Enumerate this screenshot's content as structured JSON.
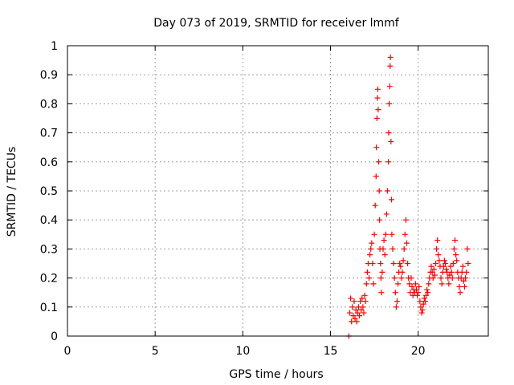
{
  "chart_data": {
    "type": "scatter",
    "title": "Day 073 of 2019, SRMTID for receiver lmmf",
    "xlabel": "GPS time / hours",
    "ylabel": "SRMTID / TECUs",
    "xlim": [
      0,
      24
    ],
    "ylim": [
      0,
      1
    ],
    "x_ticks": [
      0,
      5,
      10,
      15,
      20
    ],
    "y_ticks": [
      0,
      0.1,
      0.2,
      0.3,
      0.4,
      0.5,
      0.6,
      0.7,
      0.8,
      0.9,
      1
    ],
    "grid": true,
    "marker": "plus",
    "color": "#ff0000",
    "series": [
      {
        "name": "SRMTID",
        "x": [
          16.05,
          16.1,
          16.15,
          16.2,
          16.25,
          16.3,
          16.35,
          16.4,
          16.45,
          16.5,
          16.55,
          16.6,
          16.65,
          16.7,
          16.75,
          16.8,
          16.85,
          16.9,
          16.95,
          17.0,
          17.05,
          17.1,
          17.15,
          17.2,
          17.25,
          17.3,
          17.35,
          17.4,
          17.45,
          17.5,
          17.55,
          17.6,
          17.62,
          17.65,
          17.68,
          17.7,
          17.72,
          17.75,
          17.78,
          17.8,
          17.82,
          17.85,
          17.88,
          17.9,
          17.95,
          18.0,
          18.05,
          18.1,
          18.15,
          18.2,
          18.25,
          18.3,
          18.32,
          18.35,
          18.38,
          18.4,
          18.42,
          18.45,
          18.48,
          18.5,
          18.55,
          18.6,
          18.65,
          18.7,
          18.75,
          18.8,
          18.85,
          18.9,
          18.95,
          19.0,
          19.05,
          19.1,
          19.15,
          19.2,
          19.25,
          19.3,
          19.35,
          19.4,
          19.45,
          19.5,
          19.55,
          19.6,
          19.65,
          19.7,
          19.75,
          19.8,
          19.85,
          19.9,
          19.95,
          20.0,
          20.05,
          20.1,
          20.15,
          20.2,
          20.25,
          20.3,
          20.35,
          20.4,
          20.45,
          20.5,
          20.55,
          20.6,
          20.65,
          20.7,
          20.75,
          20.8,
          20.85,
          20.9,
          20.95,
          21.0,
          21.05,
          21.1,
          21.15,
          21.2,
          21.25,
          21.3,
          21.35,
          21.4,
          21.45,
          21.5,
          21.55,
          21.6,
          21.65,
          21.7,
          21.75,
          21.8,
          21.85,
          21.9,
          21.95,
          22.0,
          22.05,
          22.1,
          22.15,
          22.2,
          22.25,
          22.3,
          22.35,
          22.4,
          22.45,
          22.5,
          22.55,
          22.6,
          22.65,
          22.7,
          22.75,
          22.8,
          22.85
        ],
        "y": [
          0.0,
          0.08,
          0.13,
          0.05,
          0.1,
          0.07,
          0.12,
          0.06,
          0.09,
          0.05,
          0.08,
          0.1,
          0.07,
          0.12,
          0.09,
          0.13,
          0.1,
          0.08,
          0.14,
          0.12,
          0.18,
          0.22,
          0.25,
          0.2,
          0.28,
          0.3,
          0.32,
          0.25,
          0.18,
          0.35,
          0.45,
          0.55,
          0.65,
          0.75,
          0.82,
          0.85,
          0.78,
          0.6,
          0.5,
          0.4,
          0.3,
          0.25,
          0.2,
          0.15,
          0.22,
          0.3,
          0.33,
          0.28,
          0.35,
          0.42,
          0.5,
          0.6,
          0.7,
          0.8,
          0.86,
          0.93,
          0.96,
          0.67,
          0.47,
          0.35,
          0.3,
          0.25,
          0.2,
          0.15,
          0.1,
          0.12,
          0.18,
          0.22,
          0.25,
          0.24,
          0.2,
          0.22,
          0.26,
          0.3,
          0.35,
          0.4,
          0.32,
          0.25,
          0.2,
          0.18,
          0.15,
          0.2,
          0.17,
          0.14,
          0.16,
          0.15,
          0.18,
          0.16,
          0.14,
          0.15,
          0.17,
          0.12,
          0.1,
          0.08,
          0.09,
          0.11,
          0.13,
          0.12,
          0.14,
          0.16,
          0.15,
          0.18,
          0.2,
          0.22,
          0.24,
          0.22,
          0.2,
          0.23,
          0.21,
          0.25,
          0.3,
          0.33,
          0.28,
          0.26,
          0.24,
          0.2,
          0.18,
          0.22,
          0.24,
          0.26,
          0.25,
          0.23,
          0.22,
          0.2,
          0.18,
          0.21,
          0.24,
          0.22,
          0.2,
          0.25,
          0.3,
          0.33,
          0.28,
          0.26,
          0.22,
          0.2,
          0.17,
          0.15,
          0.2,
          0.22,
          0.24,
          0.19,
          0.17,
          0.2,
          0.22,
          0.3,
          0.25
        ]
      }
    ]
  }
}
